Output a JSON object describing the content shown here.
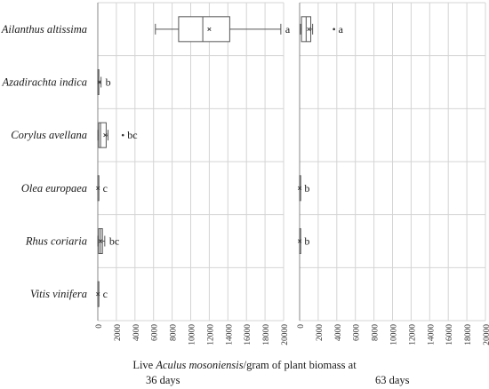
{
  "chart_data": {
    "type": "box",
    "categories": [
      "Ailanthus altissima",
      "Azadirachta indica",
      "Corylus avellana",
      "Olea europaea",
      "Rhus coriaria",
      "Vitis vinifera"
    ],
    "x_ticks": [
      0,
      2000,
      4000,
      6000,
      8000,
      10000,
      12000,
      14000,
      16000,
      18000,
      20000
    ],
    "xlim": [
      0,
      20000
    ],
    "grid": true,
    "xlabel_prefix": "Live ",
    "xlabel_species": "Aculus mosoniensis",
    "xlabel_suffix": "/gram of plant biomass at",
    "panels": [
      {
        "name": "36 days",
        "boxes": [
          {
            "category": "Ailanthus altissima",
            "min": 6200,
            "q1": 8700,
            "median": 11300,
            "q3": 14200,
            "max": 19700,
            "mean": 12000,
            "group": "a"
          },
          {
            "category": "Azadirachta indica",
            "min": 0,
            "q1": 0,
            "median": 20,
            "q3": 80,
            "max": 350,
            "mean": 150,
            "group": "b"
          },
          {
            "category": "Corylus avellana",
            "min": 0,
            "q1": 100,
            "median": 300,
            "q3": 900,
            "max": 1100,
            "mean": 800,
            "group": "bc",
            "outliers": [
              2700
            ]
          },
          {
            "category": "Olea europaea",
            "min": 0,
            "q1": 0,
            "median": 0,
            "q3": 30,
            "max": 60,
            "mean": 20,
            "group": "c"
          },
          {
            "category": "Rhus coriaria",
            "min": 0,
            "q1": 100,
            "median": 300,
            "q3": 500,
            "max": 750,
            "mean": 300,
            "group": "bc"
          },
          {
            "category": "Vitis vinifera",
            "min": 0,
            "q1": 0,
            "median": 0,
            "q3": 30,
            "max": 60,
            "mean": 20,
            "group": "c"
          }
        ]
      },
      {
        "name": "63 days",
        "boxes": [
          {
            "category": "Ailanthus altissima",
            "min": 100,
            "q1": 200,
            "median": 700,
            "q3": 1200,
            "max": 1400,
            "mean": 1000,
            "group": "a",
            "outliers": [
              3700
            ]
          },
          {
            "category": "Olea europaea",
            "min": 0,
            "q1": 0,
            "median": 0,
            "q3": 20,
            "max": 40,
            "mean": 10,
            "group": "b"
          },
          {
            "category": "Rhus coriaria",
            "min": 0,
            "q1": 0,
            "median": 0,
            "q3": 20,
            "max": 40,
            "mean": 10,
            "group": "b"
          }
        ]
      }
    ]
  }
}
